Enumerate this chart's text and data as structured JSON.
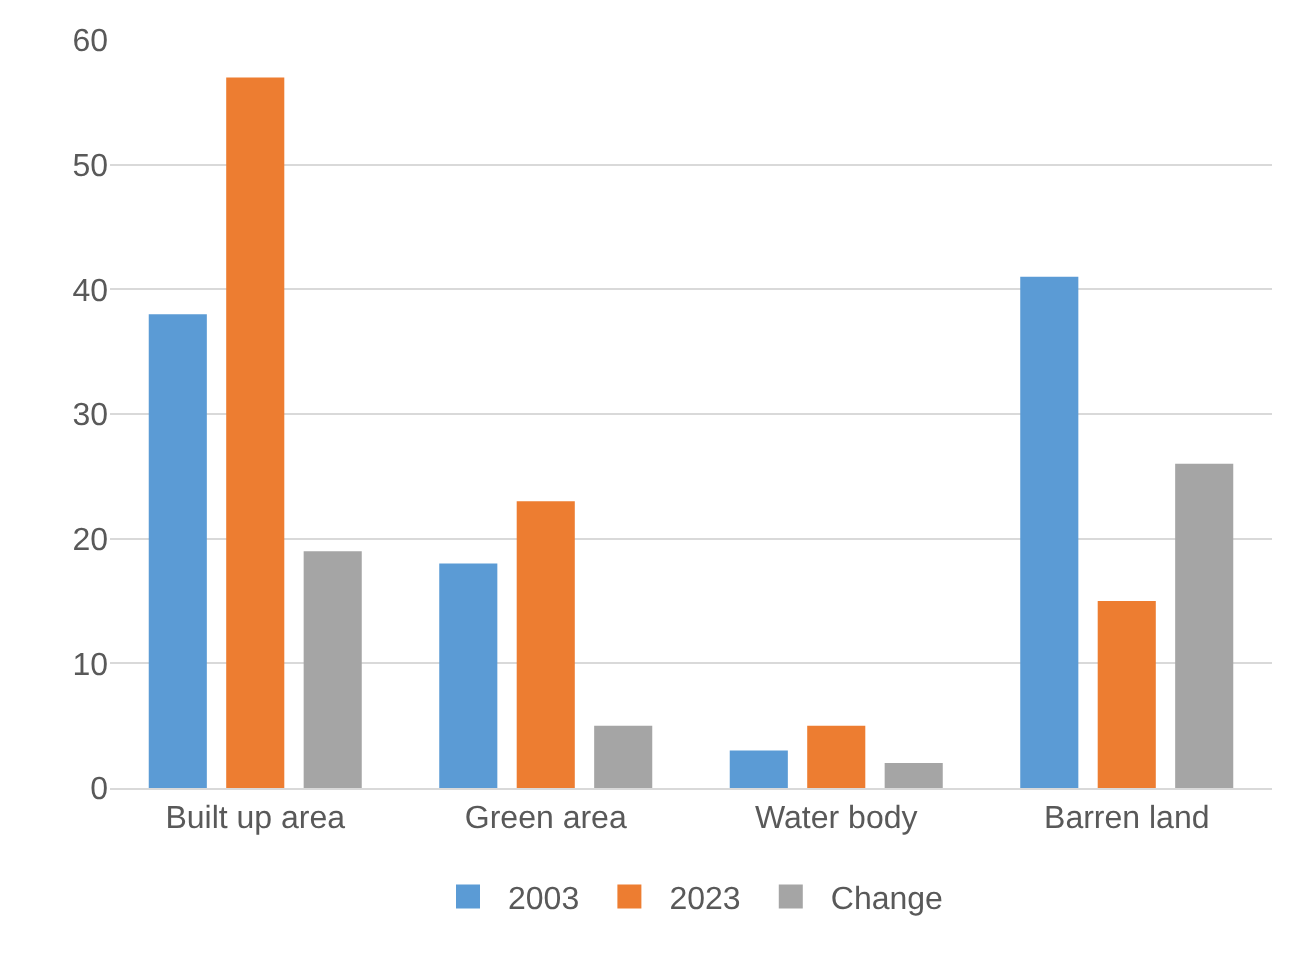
{
  "chart_data": {
    "type": "bar",
    "categories": [
      "Built up area",
      "Green area",
      "Water body",
      "Barren land"
    ],
    "series": [
      {
        "name": "2003",
        "color": "#5b9bd5",
        "values": [
          38,
          18,
          3,
          41
        ]
      },
      {
        "name": "2023",
        "color": "#ed7d31",
        "values": [
          57,
          23,
          5,
          15
        ]
      },
      {
        "name": "Change",
        "color": "#a5a5a5",
        "values": [
          19,
          5,
          2,
          26
        ]
      }
    ],
    "ylim": [
      0,
      60
    ],
    "yticks": [
      0,
      10,
      20,
      30,
      40,
      50,
      60
    ],
    "grid": "y",
    "legend": "bottom"
  }
}
